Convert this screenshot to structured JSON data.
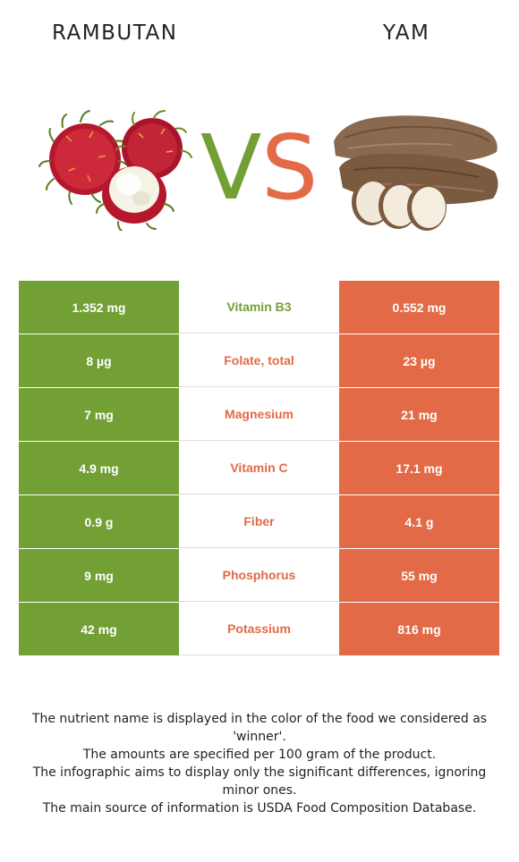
{
  "left_food": {
    "name": "RAMBUTAN",
    "color": "#73a035"
  },
  "right_food": {
    "name": "YAM",
    "color": "#e36a47"
  },
  "vs": {
    "v": "V",
    "s": "S"
  },
  "rows": [
    {
      "left": "1.352 mg",
      "nutrient": "Vitamin B3",
      "right": "0.552 mg",
      "winner": "left"
    },
    {
      "left": "8 µg",
      "nutrient": "Folate, total",
      "right": "23 µg",
      "winner": "right"
    },
    {
      "left": "7 mg",
      "nutrient": "Magnesium",
      "right": "21 mg",
      "winner": "right"
    },
    {
      "left": "4.9 mg",
      "nutrient": "Vitamin C",
      "right": "17.1 mg",
      "winner": "right"
    },
    {
      "left": "0.9 g",
      "nutrient": "Fiber",
      "right": "4.1 g",
      "winner": "right"
    },
    {
      "left": "9 mg",
      "nutrient": "Phosphorus",
      "right": "55 mg",
      "winner": "right"
    },
    {
      "left": "42 mg",
      "nutrient": "Potassium",
      "right": "816 mg",
      "winner": "right"
    }
  ],
  "footnote": [
    "The nutrient name is displayed in the color of the food we considered as 'winner'.",
    "The amounts are specified per 100 gram of the product.",
    "The infographic aims to display only the significant differences, ignoring minor ones.",
    "The main source of information is USDA Food Composition Database."
  ]
}
